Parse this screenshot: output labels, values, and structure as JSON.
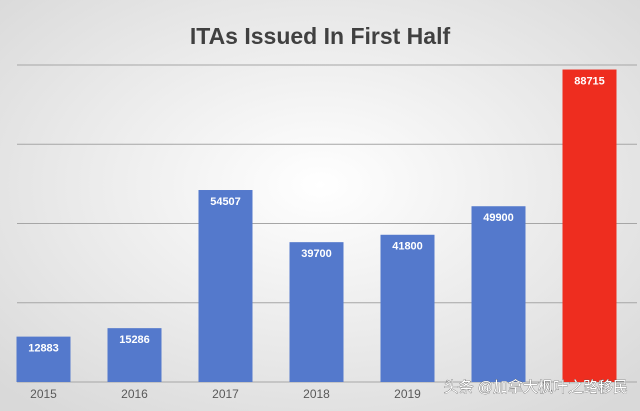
{
  "chart_data": {
    "type": "bar",
    "title": "ITAs Issued In First Half",
    "categories": [
      "2015",
      "2016",
      "2017",
      "2018",
      "2019",
      null,
      null
    ],
    "values": [
      12883,
      15286,
      54507,
      39700,
      41800,
      49900,
      88715
    ],
    "colors": [
      "#5479cc",
      "#5479cc",
      "#5479cc",
      "#5479cc",
      "#5479cc",
      "#5479cc",
      "#ee2d1f"
    ],
    "ylim": [
      0,
      90000
    ],
    "yticks": [
      0,
      22500,
      45000,
      67500,
      90000
    ],
    "grid": true,
    "watermark": "头条 @加拿大枫叶之路移民"
  }
}
